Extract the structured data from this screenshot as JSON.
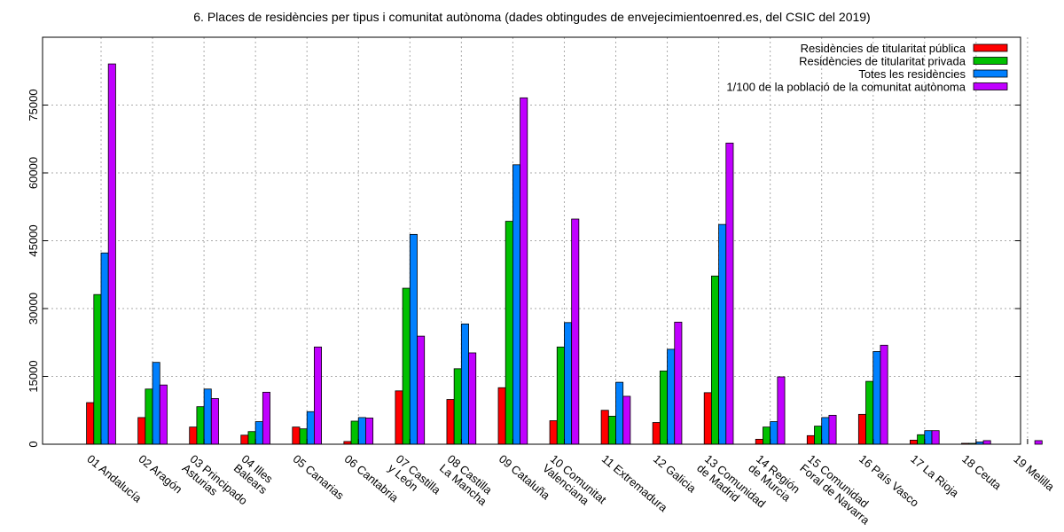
{
  "chart_data": {
    "type": "bar",
    "title": "6. Places de residències per tipus i comunitat autònoma (dades obtingudes de envejecimientoenred.es, del CSIC del 2019)",
    "xlabel": "",
    "ylabel": "",
    "ylim": [
      0,
      90000
    ],
    "yticks": [
      0,
      15000,
      30000,
      45000,
      60000,
      75000
    ],
    "grid": true,
    "legend_position": "top-right",
    "categories": [
      [
        "01 Andalucía"
      ],
      [
        "02 Aragón"
      ],
      [
        "03 Principado",
        "Asturias"
      ],
      [
        "04 Illes",
        "Balears"
      ],
      [
        "05 Canarias"
      ],
      [
        "06 Cantabria"
      ],
      [
        "07 Castilla",
        "y León"
      ],
      [
        "08 Castilla",
        "La Mancha"
      ],
      [
        "09 Cataluña"
      ],
      [
        "10 Comunitat",
        "Valenciana"
      ],
      [
        "11 Extremadura"
      ],
      [
        "12 Galicia"
      ],
      [
        "13 Comunidad",
        "de Madrid"
      ],
      [
        "14 Región",
        "de Murcia"
      ],
      [
        "15 Comunidad",
        "Foral de Navarra"
      ],
      [
        "16 País Vasco"
      ],
      [
        "17 La Rioja"
      ],
      [
        "18 Ceuta"
      ],
      [
        "19 Melilla"
      ]
    ],
    "series": [
      {
        "name": "Residències de titularitat pública",
        "color": "#ff0000",
        "values": [
          9200,
          5900,
          3800,
          2000,
          3800,
          600,
          11800,
          9900,
          12500,
          5200,
          7500,
          4800,
          11400,
          1100,
          1900,
          6600,
          900,
          200,
          null
        ]
      },
      {
        "name": "Residències de titularitat privada",
        "color": "#00c000",
        "values": [
          33100,
          12200,
          8300,
          2800,
          3400,
          5100,
          34500,
          16700,
          49300,
          21500,
          6200,
          16200,
          37200,
          3800,
          4000,
          13900,
          2100,
          200,
          null
        ]
      },
      {
        "name": "Totes les residències",
        "color": "#0080ff",
        "values": [
          42300,
          18100,
          12200,
          5000,
          7200,
          5900,
          46400,
          26600,
          61800,
          26900,
          13700,
          21000,
          48600,
          5000,
          5900,
          20500,
          3000,
          500,
          null
        ]
      },
      {
        "name": "1/100 de la població de la comunitat autònoma",
        "color": "#c000ff",
        "values": [
          84100,
          13100,
          10100,
          11500,
          21500,
          5800,
          23900,
          20200,
          76600,
          49800,
          10600,
          27000,
          66600,
          14900,
          6400,
          21900,
          3000,
          800,
          800
        ]
      }
    ]
  }
}
